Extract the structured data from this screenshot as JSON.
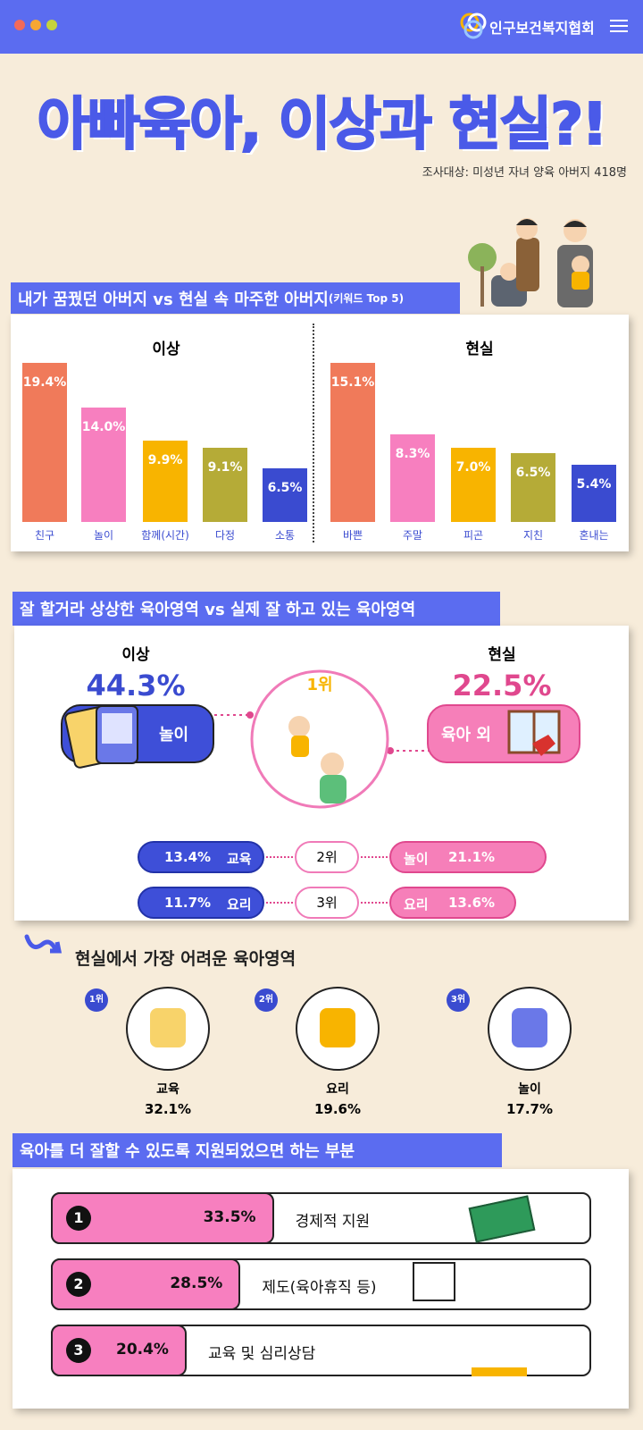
{
  "header": {
    "logo": "인구보건복지협회"
  },
  "title": "아빠육아, 이상과 현실?!",
  "subtitle": "조사대상: 미성년 자녀 양육 아버지 418명",
  "section1": {
    "title": "내가 꿈꿨던 아버지 vs 현실 속 마주한 아버지",
    "title_note": "(키워드 Top 5)"
  },
  "chart_data": [
    {
      "type": "bar",
      "title": "이상",
      "categories": [
        "친구",
        "놀이",
        "함께(시간)",
        "다정",
        "소통"
      ],
      "values": [
        19.4,
        14.0,
        9.9,
        9.1,
        6.5
      ],
      "value_labels": [
        "19.4%",
        "14.0%",
        "9.9%",
        "9.1%",
        "6.5%"
      ],
      "colors": [
        "#f07a5a",
        "#f77fbf",
        "#f8b400",
        "#b5ab37",
        "#3a4bd0"
      ]
    },
    {
      "type": "bar",
      "title": "현실",
      "categories": [
        "바쁜",
        "주말",
        "피곤",
        "지친",
        "혼내는"
      ],
      "values": [
        15.1,
        8.3,
        7.0,
        6.5,
        5.4
      ],
      "value_labels": [
        "15.1%",
        "8.3%",
        "7.0%",
        "6.5%",
        "5.4%"
      ],
      "colors": [
        "#f07a5a",
        "#f77fbf",
        "#f8b400",
        "#b5ab37",
        "#3a4bd0"
      ]
    },
    {
      "type": "hbar",
      "title": "육아를 더 잘할 수 있도록 지원되었으면 하는 부분",
      "ranks": [
        1,
        2,
        3
      ],
      "categories": [
        "경제적 지원",
        "제도(육아휴직 등)",
        "교육 및 심리상담"
      ],
      "values": [
        33.5,
        28.5,
        20.4
      ],
      "value_labels": [
        "33.5%",
        "28.5%",
        "20.4%"
      ],
      "color": "#f77fbf"
    }
  ],
  "section2": {
    "title": "잘 할거라 상상한 육아영역 vs 실제 잘 하고 있는 육아영역",
    "ideal": {
      "label": "이상",
      "value": "44.3%",
      "item": "놀이"
    },
    "top_rank": "1위",
    "real": {
      "label": "현실",
      "value": "22.5%",
      "item": "육아 외"
    },
    "rows": [
      {
        "rank": "2위",
        "ideal_value": "13.4%",
        "ideal_item": "교육",
        "real_item": "놀이",
        "real_value": "21.1%"
      },
      {
        "rank": "3위",
        "ideal_value": "11.7%",
        "ideal_item": "요리",
        "real_item": "요리",
        "real_value": "13.6%"
      }
    ]
  },
  "section3": {
    "title": "현실에서 가장 어려운 육아영역",
    "items": [
      {
        "rank": "1위",
        "name": "교육",
        "value": "32.1%"
      },
      {
        "rank": "2위",
        "name": "요리",
        "value": "19.6%"
      },
      {
        "rank": "3위",
        "name": "놀이",
        "value": "17.7%"
      }
    ]
  }
}
